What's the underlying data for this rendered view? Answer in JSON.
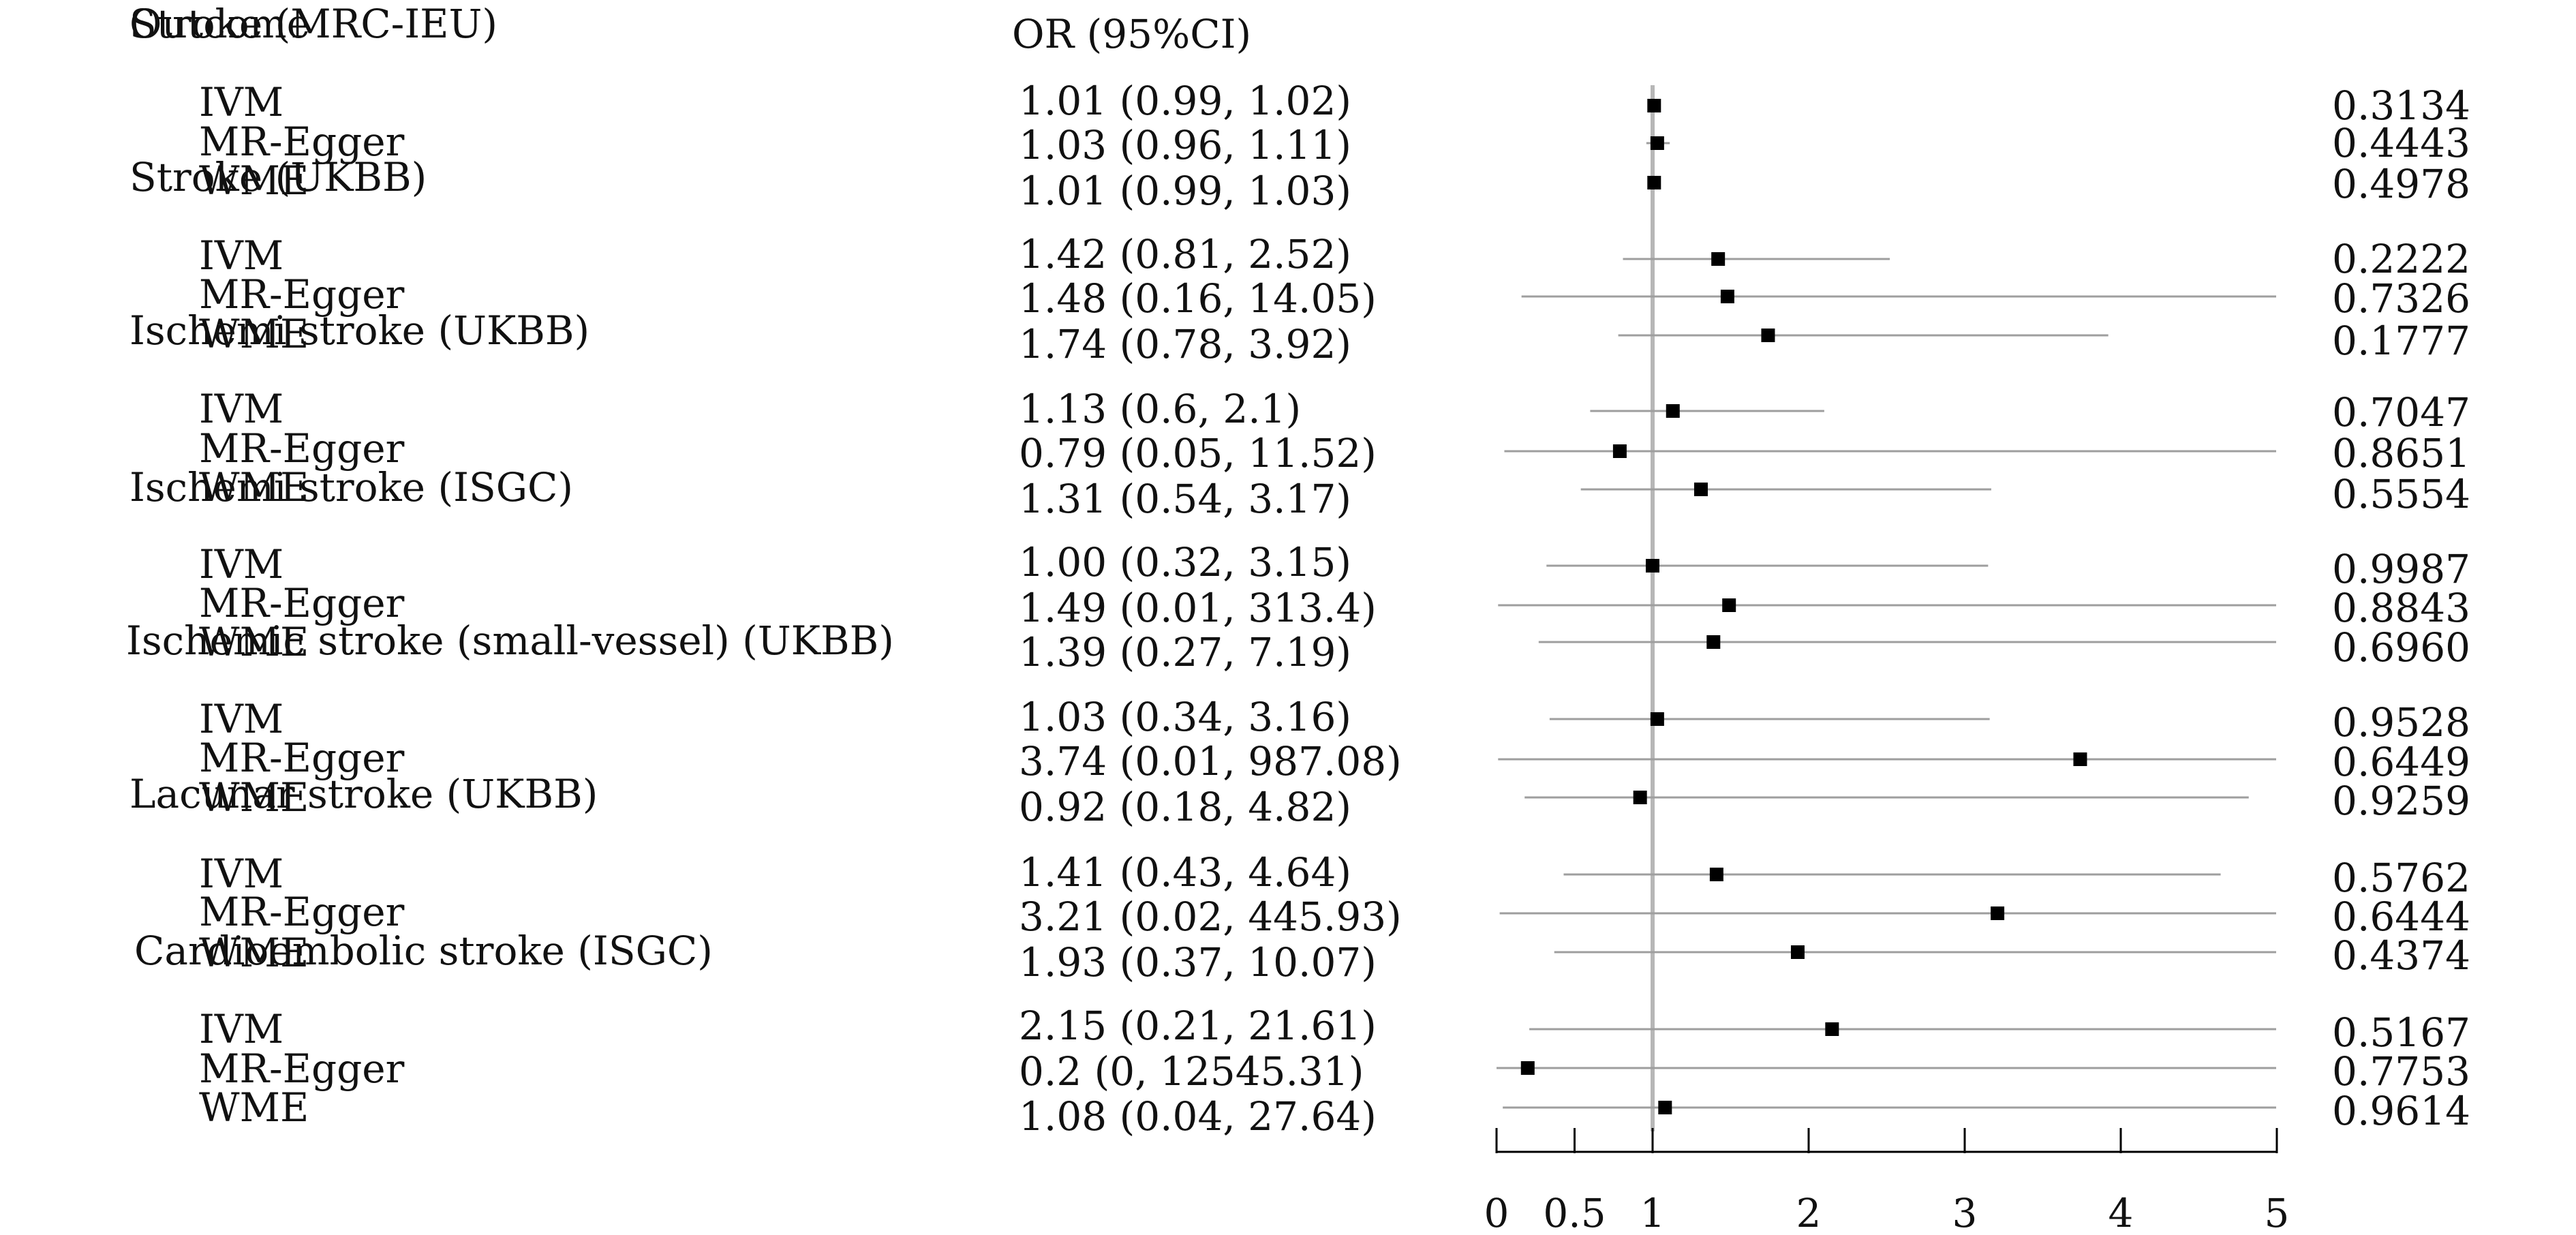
{
  "chart_data": {
    "type": "forest",
    "header": {
      "outcome_label": "Outcome",
      "or_label": "OR (95%CI)"
    },
    "x_axis": {
      "ticks": [
        0,
        0.5,
        1,
        2,
        3,
        4,
        5
      ],
      "tick_labels": [
        "0",
        "0.5",
        "1",
        "2",
        "3",
        "4",
        "5"
      ],
      "range": [
        0,
        5
      ],
      "reference_line": 1
    },
    "groups": [
      {
        "outcome": "Stroke (MRC-IEU)",
        "rows": [
          {
            "method": "IVM",
            "or_text": "1.01 (0.99, 1.02)",
            "or": 1.01,
            "lower": 0.99,
            "upper": 1.02,
            "p": "0.3134"
          },
          {
            "method": "MR-Egger",
            "or_text": "1.03 (0.96, 1.11)",
            "or": 1.03,
            "lower": 0.96,
            "upper": 1.11,
            "p": "0.4443"
          },
          {
            "method": "WME",
            "or_text": "1.01 (0.99, 1.03)",
            "or": 1.01,
            "lower": 0.99,
            "upper": 1.03,
            "p": "0.4978"
          }
        ]
      },
      {
        "outcome": "Stroke (UKBB)",
        "rows": [
          {
            "method": "IVM",
            "or_text": "1.42 (0.81, 2.52)",
            "or": 1.42,
            "lower": 0.81,
            "upper": 2.52,
            "p": "0.2222"
          },
          {
            "method": "MR-Egger",
            "or_text": "1.48 (0.16, 14.05)",
            "or": 1.48,
            "lower": 0.16,
            "upper": 14.05,
            "p": "0.7326"
          },
          {
            "method": "WME",
            "or_text": "1.74 (0.78, 3.92)",
            "or": 1.74,
            "lower": 0.78,
            "upper": 3.92,
            "p": "0.1777"
          }
        ]
      },
      {
        "outcome": "Ischemi stroke (UKBB)",
        "rows": [
          {
            "method": "IVM",
            "or_text": "1.13 (0.6, 2.1)",
            "or": 1.13,
            "lower": 0.6,
            "upper": 2.1,
            "p": "0.7047"
          },
          {
            "method": "MR-Egger",
            "or_text": "0.79 (0.05, 11.52)",
            "or": 0.79,
            "lower": 0.05,
            "upper": 11.52,
            "p": "0.8651"
          },
          {
            "method": "WME",
            "or_text": "1.31 (0.54, 3.17)",
            "or": 1.31,
            "lower": 0.54,
            "upper": 3.17,
            "p": "0.5554"
          }
        ]
      },
      {
        "outcome": "Ischemi stroke (ISGC)",
        "rows": [
          {
            "method": "IVM",
            "or_text": "1.00 (0.32, 3.15)",
            "or": 1.0,
            "lower": 0.32,
            "upper": 3.15,
            "p": "0.9987"
          },
          {
            "method": "MR-Egger",
            "or_text": "1.49 (0.01, 313.4)",
            "or": 1.49,
            "lower": 0.01,
            "upper": 313.4,
            "p": "0.8843"
          },
          {
            "method": "WME",
            "or_text": "1.39 (0.27, 7.19)",
            "or": 1.39,
            "lower": 0.27,
            "upper": 7.19,
            "p": "0.6960"
          }
        ]
      },
      {
        "outcome": "Ischemic stroke (small-vessel) (UKBB)",
        "rows": [
          {
            "method": "IVM",
            "or_text": "1.03 (0.34, 3.16)",
            "or": 1.03,
            "lower": 0.34,
            "upper": 3.16,
            "p": "0.9528"
          },
          {
            "method": "MR-Egger",
            "or_text": "3.74 (0.01, 987.08)",
            "or": 3.74,
            "lower": 0.01,
            "upper": 987.08,
            "p": "0.6449"
          },
          {
            "method": "WME",
            "or_text": "0.92 (0.18, 4.82)",
            "or": 0.92,
            "lower": 0.18,
            "upper": 4.82,
            "p": "0.9259"
          }
        ]
      },
      {
        "outcome": "Lacunar stroke (UKBB)",
        "rows": [
          {
            "method": "IVM",
            "or_text": "1.41 (0.43, 4.64)",
            "or": 1.41,
            "lower": 0.43,
            "upper": 4.64,
            "p": "0.5762"
          },
          {
            "method": "MR-Egger",
            "or_text": "3.21 (0.02, 445.93)",
            "or": 3.21,
            "lower": 0.02,
            "upper": 445.93,
            "p": "0.6444"
          },
          {
            "method": "WME",
            "or_text": "1.93 (0.37, 10.07)",
            "or": 1.93,
            "lower": 0.37,
            "upper": 10.07,
            "p": "0.4374"
          }
        ]
      },
      {
        "outcome": "Cardioembolic stroke (ISGC)",
        "rows": [
          {
            "method": "IVM",
            "or_text": "2.15 (0.21, 21.61)",
            "or": 2.15,
            "lower": 0.21,
            "upper": 21.61,
            "p": "0.5167"
          },
          {
            "method": "MR-Egger",
            "or_text": "0.2 (0, 12545.31)",
            "or": 0.2,
            "lower": 0,
            "upper": 12545.31,
            "p": "0.7753"
          },
          {
            "method": "WME",
            "or_text": "1.08 (0.04, 27.64)",
            "or": 1.08,
            "lower": 0.04,
            "upper": 27.64,
            "p": "0.9614"
          }
        ]
      }
    ]
  }
}
